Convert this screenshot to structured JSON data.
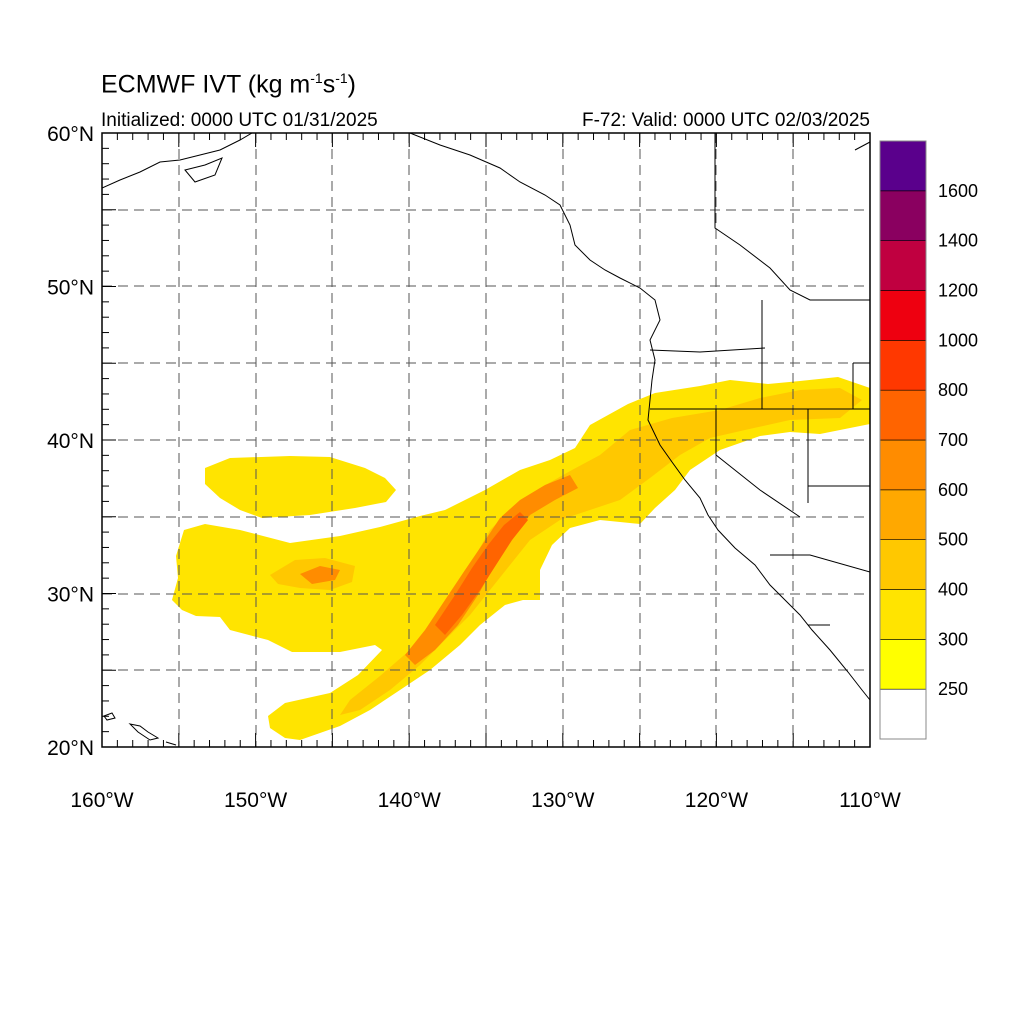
{
  "title": {
    "main": "ECMWF IVT (kg m",
    "exp1": "-1",
    "mid": "s",
    "exp2": "-1",
    "end": ")"
  },
  "subtitle": {
    "left": "Initialized: 0000 UTC 01/31/2025",
    "right": "F-72: Valid: 0000 UTC 02/03/2025"
  },
  "axes": {
    "lon_ticks": [
      {
        "value": -160,
        "label": "160°W"
      },
      {
        "value": -150,
        "label": "150°W"
      },
      {
        "value": -140,
        "label": "140°W"
      },
      {
        "value": -130,
        "label": "130°W"
      },
      {
        "value": -120,
        "label": "120°W"
      },
      {
        "value": -110,
        "label": "110°W"
      }
    ],
    "lat_ticks": [
      {
        "value": 20,
        "label": "20°N"
      },
      {
        "value": 30,
        "label": "30°N"
      },
      {
        "value": 40,
        "label": "40°N"
      },
      {
        "value": 50,
        "label": "50°N"
      },
      {
        "value": 60,
        "label": "60°N"
      }
    ],
    "lon_range": [
      -160,
      -110
    ],
    "lat_range": [
      20,
      60
    ],
    "grid": "dashed"
  },
  "colorbar": {
    "levels": [
      {
        "label": "250",
        "color": "#ffff00"
      },
      {
        "label": "300",
        "color": "#ffe400"
      },
      {
        "label": "400",
        "color": "#ffc800"
      },
      {
        "label": "500",
        "color": "#ffa800"
      },
      {
        "label": "600",
        "color": "#ff8c00"
      },
      {
        "label": "700",
        "color": "#ff6400"
      },
      {
        "label": "800",
        "color": "#ff3800"
      },
      {
        "label": "1000",
        "color": "#ee0010"
      },
      {
        "label": "1200",
        "color": "#c00040"
      },
      {
        "label": "1400",
        "color": "#8a0060"
      },
      {
        "label": "1600",
        "color": "#5a008c"
      }
    ],
    "below_color": "#ffffff"
  },
  "fields": {
    "main_plume": {
      "min_ivt": 250,
      "core_ivt": 700
    },
    "subtropical_blob": {
      "min_ivt": 250,
      "core_ivt": 300
    }
  }
}
